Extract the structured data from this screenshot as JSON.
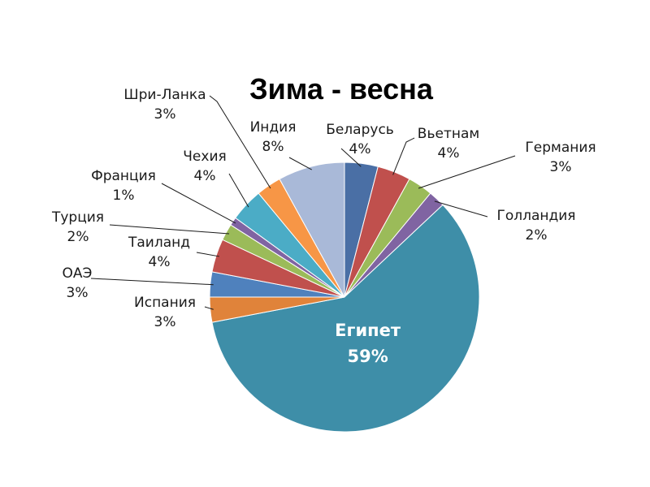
{
  "chart_data": {
    "type": "pie",
    "title": "Зима - весна",
    "slices": [
      {
        "name": "Беларусь",
        "value": 4,
        "label": "4%",
        "color": "#4a6fa5"
      },
      {
        "name": "Вьетнам",
        "value": 4,
        "label": "4%",
        "color": "#c0504d"
      },
      {
        "name": "Германия",
        "value": 3,
        "label": "3%",
        "color": "#9bbb59"
      },
      {
        "name": "Голландия",
        "value": 2,
        "label": "2%",
        "color": "#8064a2"
      },
      {
        "name": "Египет",
        "value": 59,
        "label": "59%",
        "color": "#3e8ea8"
      },
      {
        "name": "Испания",
        "value": 3,
        "label": "3%",
        "color": "#e0833a"
      },
      {
        "name": "ОАЭ",
        "value": 3,
        "label": "3%",
        "color": "#4f81bd"
      },
      {
        "name": "Таиланд",
        "value": 4,
        "label": "4%",
        "color": "#c0504d"
      },
      {
        "name": "Турция",
        "value": 2,
        "label": "2%",
        "color": "#9bbb59"
      },
      {
        "name": "Франция",
        "value": 1,
        "label": "1%",
        "color": "#8064a2"
      },
      {
        "name": "Чехия",
        "value": 4,
        "label": "4%",
        "color": "#4bacc6"
      },
      {
        "name": "Шри-Ланка",
        "value": 3,
        "label": "3%",
        "color": "#f79646"
      },
      {
        "name": "Индия",
        "value": 8,
        "label": "8%",
        "color": "#a9b9d8"
      }
    ]
  }
}
